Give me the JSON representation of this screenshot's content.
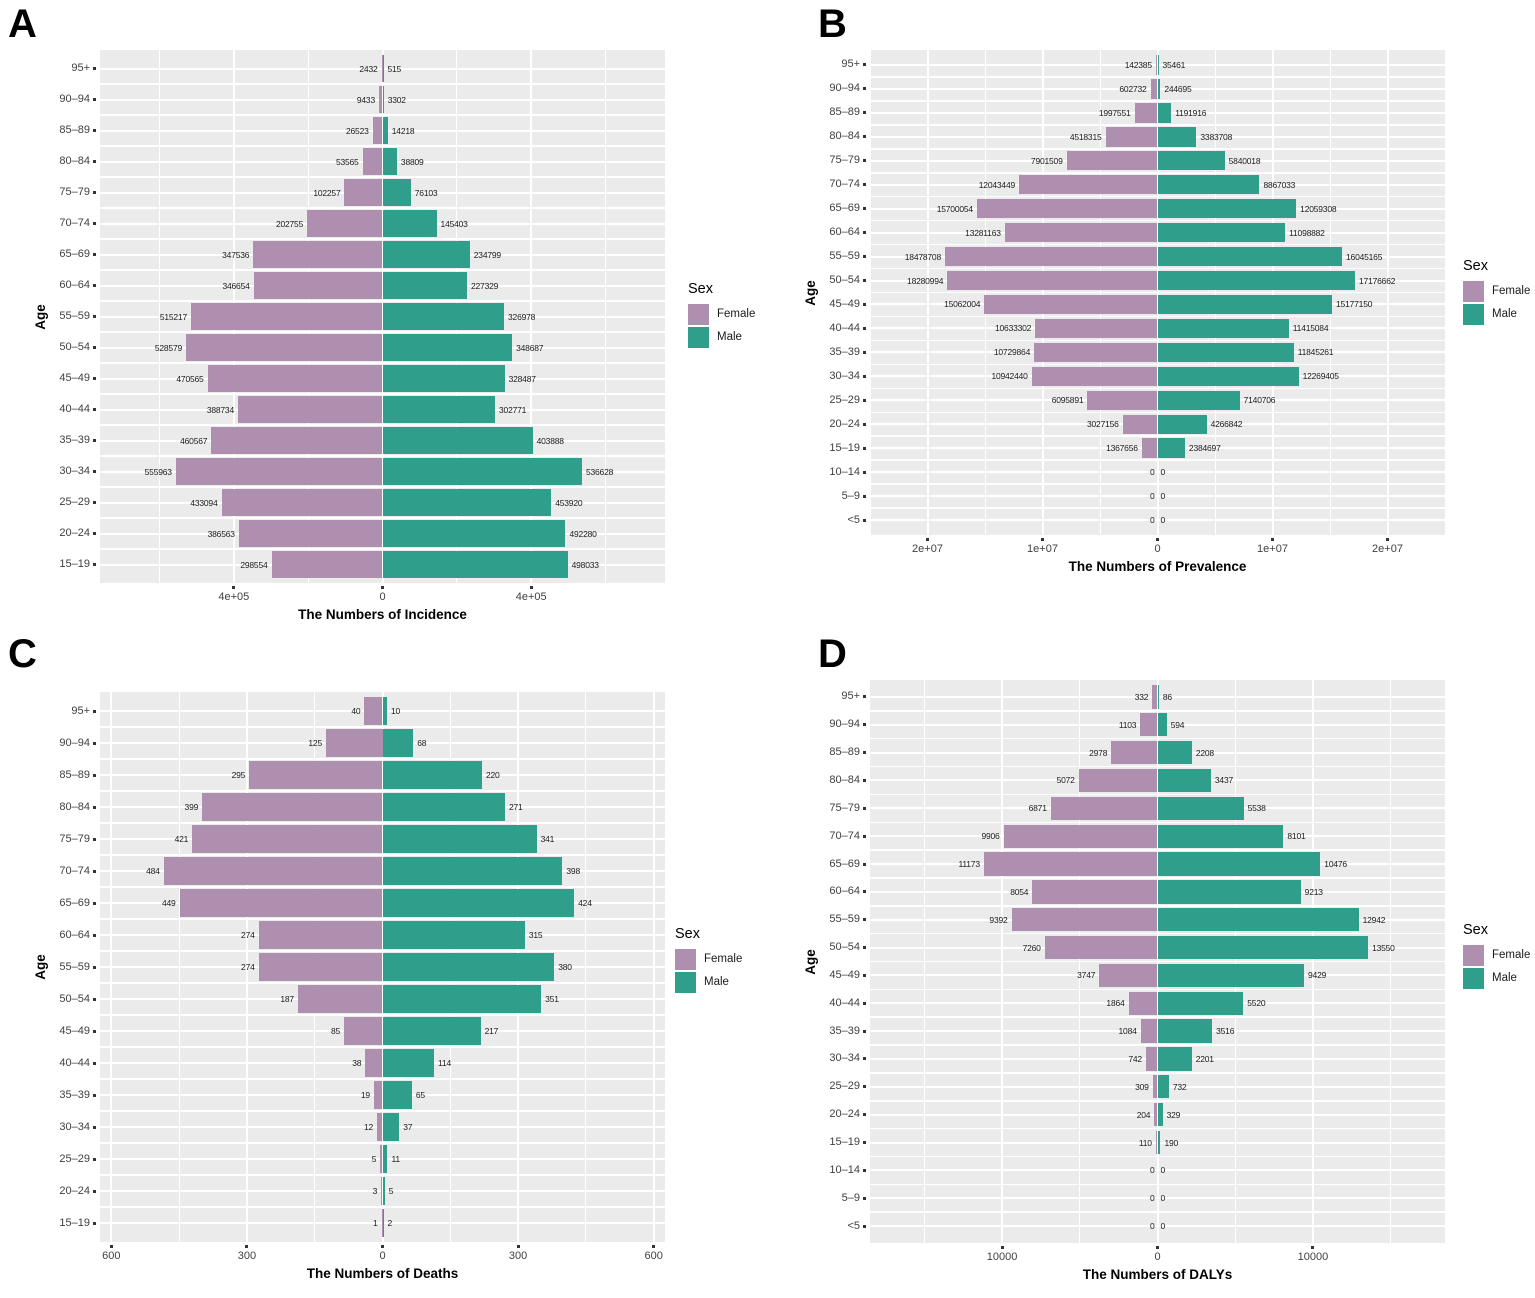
{
  "figure": {
    "background": "#ffffff",
    "panel_bg": "#ebebeb",
    "grid_color": "#ffffff",
    "legend": {
      "title": "Sex",
      "items": [
        {
          "label": "Female",
          "color": "#AF8FB0"
        },
        {
          "label": "Male",
          "color": "#2F9E8A"
        }
      ]
    }
  },
  "chart_data": [
    {
      "panel": "A",
      "type": "bar",
      "subtype": "population-pyramid",
      "xlabel": "The Numbers of Incidence",
      "ylabel": "Age",
      "legend_position": "right",
      "grid": true,
      "categories": [
        "95+",
        "90–94",
        "85–89",
        "80–84",
        "75–79",
        "70–74",
        "65–69",
        "60–64",
        "55–59",
        "50–54",
        "45–49",
        "40–44",
        "35–39",
        "30–34",
        "25–29",
        "20–24",
        "15–19"
      ],
      "series": [
        {
          "name": "Female",
          "color": "#AF8FB0",
          "values": [
            2432,
            9433,
            26523,
            53565,
            102257,
            202755,
            347536,
            346654,
            515217,
            528579,
            470565,
            388734,
            460567,
            555963,
            433094,
            386563,
            298554
          ]
        },
        {
          "name": "Male",
          "color": "#2F9E8A",
          "values": [
            515,
            3302,
            14218,
            38809,
            76103,
            145403,
            234799,
            227329,
            326978,
            348687,
            328487,
            302771,
            403888,
            536628,
            453920,
            492280,
            498033
          ]
        }
      ],
      "x_ticks": [
        {
          "label": "4e+05",
          "value": -400000
        },
        {
          "label": "0",
          "value": 0
        },
        {
          "label": "4e+05",
          "value": 400000
        }
      ],
      "x_minor": [
        200000,
        600000
      ],
      "xlim": [
        -760000,
        760000
      ],
      "xmax": 760000
    },
    {
      "panel": "B",
      "type": "bar",
      "subtype": "population-pyramid",
      "xlabel": "The Numbers of Prevalence",
      "ylabel": "Age",
      "legend_position": "right",
      "grid": true,
      "categories": [
        "95+",
        "90–94",
        "85–89",
        "80–84",
        "75–79",
        "70–74",
        "65–69",
        "60–64",
        "55–59",
        "50–54",
        "45–49",
        "40–44",
        "35–39",
        "30–34",
        "25–29",
        "20–24",
        "15–19",
        "10–14",
        "5–9",
        "<5"
      ],
      "series": [
        {
          "name": "Female",
          "color": "#AF8FB0",
          "values": [
            142385,
            602732,
            1997551,
            4518315,
            7901509,
            12043449,
            15700054,
            13281163,
            18478708,
            18280994,
            15062004,
            10633302,
            10729864,
            10942440,
            6095891,
            3027156,
            1367656,
            0,
            0,
            0
          ]
        },
        {
          "name": "Male",
          "color": "#2F9E8A",
          "values": [
            35461,
            244695,
            1191916,
            3383708,
            5840018,
            8867033,
            12059308,
            11098882,
            16045165,
            17176662,
            15177150,
            11415084,
            11845261,
            12269405,
            7140706,
            4266842,
            2384697,
            0,
            0,
            0
          ]
        }
      ],
      "x_ticks": [
        {
          "label": "2e+07",
          "value": -20000000
        },
        {
          "label": "1e+07",
          "value": -10000000
        },
        {
          "label": "0",
          "value": 0
        },
        {
          "label": "1e+07",
          "value": 10000000
        },
        {
          "label": "2e+07",
          "value": 20000000
        }
      ],
      "x_minor": [
        5000000,
        15000000,
        25000000
      ],
      "xlim": [
        -25000000,
        25000000
      ],
      "xmax": 25000000
    },
    {
      "panel": "C",
      "type": "bar",
      "subtype": "population-pyramid",
      "xlabel": "The Numbers of Deaths",
      "ylabel": "Age",
      "legend_position": "right",
      "grid": true,
      "categories": [
        "95+",
        "90–94",
        "85–89",
        "80–84",
        "75–79",
        "70–74",
        "65–69",
        "60–64",
        "55–59",
        "50–54",
        "45–49",
        "40–44",
        "35–39",
        "30–34",
        "25–29",
        "20–24",
        "15–19"
      ],
      "series": [
        {
          "name": "Female",
          "color": "#AF8FB0",
          "values": [
            40,
            125,
            295,
            399,
            421,
            484,
            449,
            274,
            274,
            187,
            85,
            38,
            19,
            12,
            5,
            3,
            1
          ]
        },
        {
          "name": "Male",
          "color": "#2F9E8A",
          "values": [
            10,
            68,
            220,
            271,
            341,
            398,
            424,
            315,
            380,
            351,
            217,
            114,
            65,
            37,
            11,
            5,
            2
          ]
        }
      ],
      "x_ticks": [
        {
          "label": "600",
          "value": -600
        },
        {
          "label": "300",
          "value": -300
        },
        {
          "label": "0",
          "value": 0
        },
        {
          "label": "300",
          "value": 300
        },
        {
          "label": "600",
          "value": 600
        }
      ],
      "x_minor": [
        150,
        450
      ],
      "xlim": [
        -625,
        625
      ],
      "xmax": 625
    },
    {
      "panel": "D",
      "type": "bar",
      "subtype": "population-pyramid",
      "xlabel": "The Numbers of DALYs",
      "ylabel": "Age",
      "legend_position": "right",
      "grid": true,
      "categories": [
        "95+",
        "90–94",
        "85–89",
        "80–84",
        "75–79",
        "70–74",
        "65–69",
        "60–64",
        "55–59",
        "50–54",
        "45–49",
        "40–44",
        "35–39",
        "30–34",
        "25–29",
        "20–24",
        "15–19",
        "10–14",
        "5–9",
        "<5"
      ],
      "series": [
        {
          "name": "Female",
          "color": "#AF8FB0",
          "values": [
            332,
            1103,
            2978,
            5072,
            6871,
            9906,
            11173,
            8054,
            9392,
            7260,
            3747,
            1864,
            1084,
            742,
            309,
            204,
            110,
            0,
            0,
            0
          ]
        },
        {
          "name": "Male",
          "color": "#2F9E8A",
          "values": [
            86,
            594,
            2208,
            3437,
            5538,
            8101,
            10476,
            9213,
            12942,
            13550,
            9429,
            5520,
            3516,
            2201,
            732,
            329,
            190,
            0,
            0,
            0
          ]
        }
      ],
      "x_ticks": [
        {
          "label": "10000",
          "value": -10000
        },
        {
          "label": "0",
          "value": 0
        },
        {
          "label": "10000",
          "value": 10000
        }
      ],
      "x_minor": [
        5000,
        15000
      ],
      "xlim": [
        -18500,
        18500
      ],
      "xmax": 18500
    }
  ]
}
